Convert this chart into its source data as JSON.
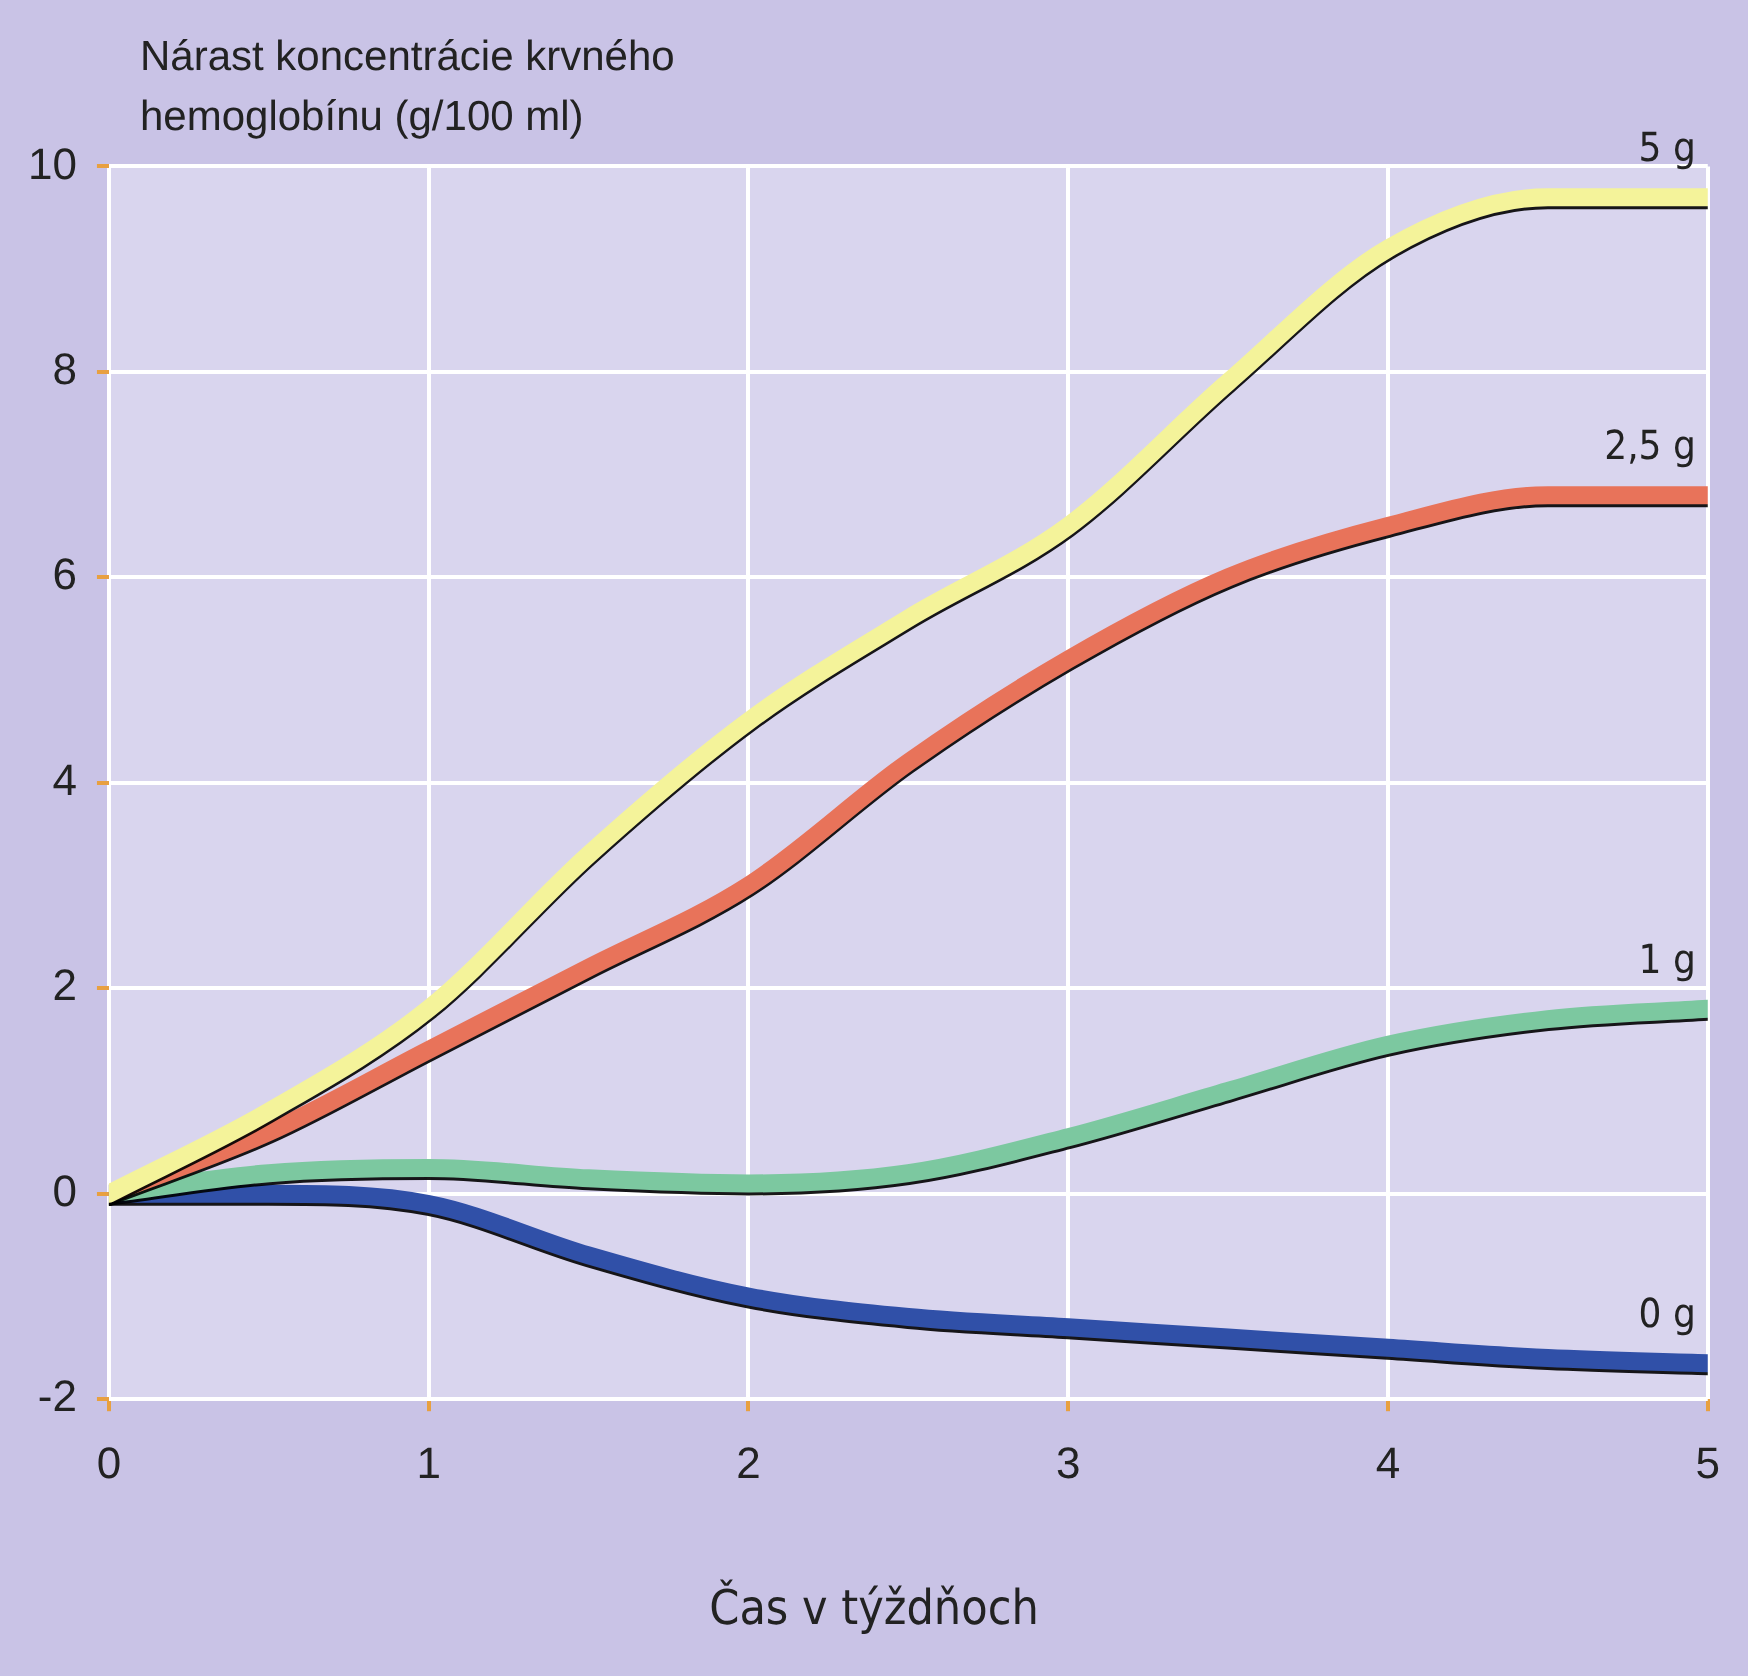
{
  "chart_data": {
    "type": "line",
    "ylabel": "Nárast koncentrácie krvného hemoglobínu (g/100 ml)",
    "xlabel": "Čas v týždňoch",
    "x": [
      0,
      0.5,
      1,
      1.5,
      2,
      2.5,
      3,
      3.5,
      4,
      4.5,
      5
    ],
    "xlim": [
      0,
      5
    ],
    "xticks": [
      0,
      1,
      2,
      3,
      4,
      5
    ],
    "ylim": [
      -2,
      10
    ],
    "yticks": [
      -2,
      0,
      2,
      4,
      6,
      8,
      10
    ],
    "grid": true,
    "legend": false,
    "marker": "none",
    "line_style": "solid",
    "series": [
      {
        "name": "5 g",
        "color": "#f4f39a",
        "values": [
          0,
          0.8,
          1.8,
          3.3,
          4.6,
          5.6,
          6.5,
          7.9,
          9.2,
          9.7,
          9.7
        ]
      },
      {
        "name": "2,5 g",
        "color": "#e8735a",
        "values": [
          0,
          0.6,
          1.4,
          2.2,
          3.0,
          4.2,
          5.2,
          6.0,
          6.5,
          6.8,
          6.8
        ]
      },
      {
        "name": "1 g",
        "color": "#7cc8a0",
        "values": [
          0,
          0.2,
          0.25,
          0.15,
          0.1,
          0.2,
          0.55,
          1.0,
          1.45,
          1.7,
          1.8
        ]
      },
      {
        "name": "0 g",
        "color": "#3050a8",
        "values": [
          0,
          0,
          -0.1,
          -0.6,
          -1.0,
          -1.2,
          -1.3,
          -1.4,
          -1.5,
          -1.6,
          -1.65
        ]
      }
    ]
  }
}
